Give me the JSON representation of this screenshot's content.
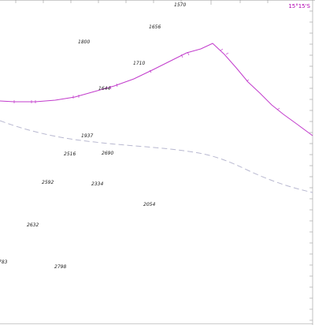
{
  "map": {
    "latitude_label": "15°15'S",
    "colors": {
      "background": "#ffffff",
      "frame": "#9a9a9a",
      "latitude_line": "#c23ccc",
      "dashed_boundary": "#b8b8d0",
      "depth_text": "#222222",
      "latitude_text": "#b000b0"
    },
    "soundings": [
      "1570",
      "1656",
      "1800",
      "1710",
      "1644",
      "1937",
      "2516",
      "2690",
      "2592",
      "2334",
      "2054",
      "2632",
      "783",
      "2798"
    ]
  }
}
